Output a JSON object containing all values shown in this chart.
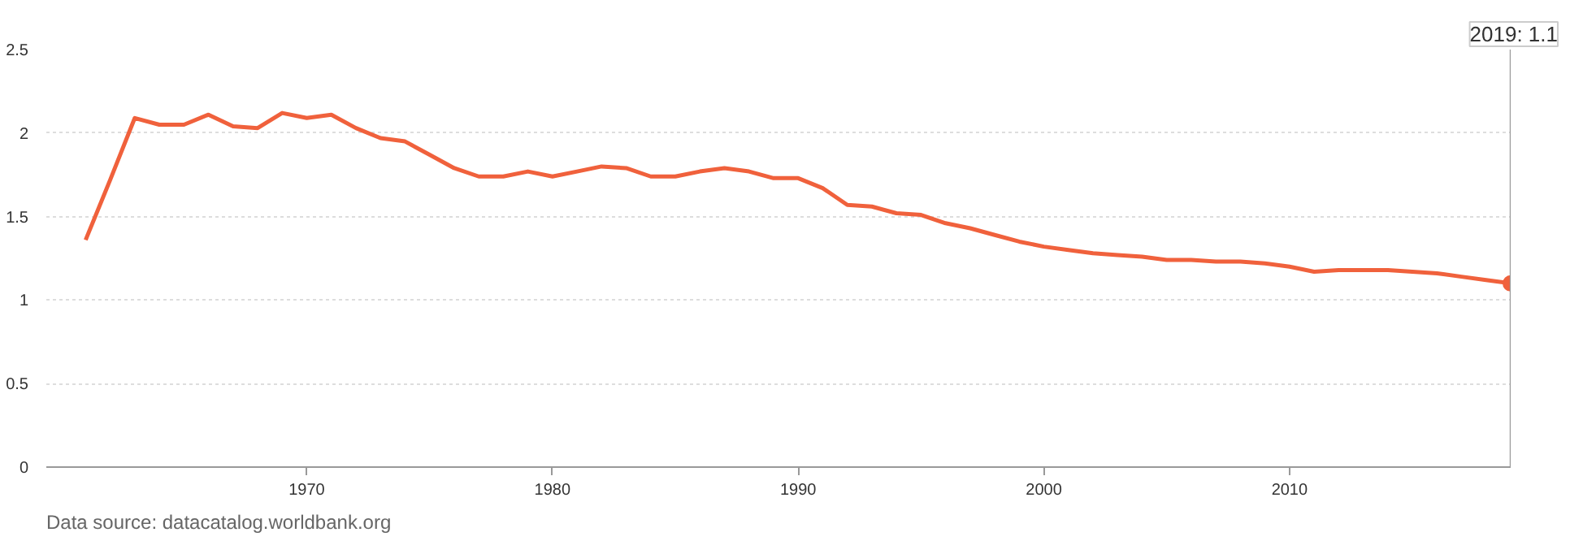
{
  "chart_data": {
    "type": "line",
    "x": [
      1961,
      1962,
      1963,
      1964,
      1965,
      1966,
      1967,
      1968,
      1969,
      1970,
      1971,
      1972,
      1973,
      1974,
      1975,
      1976,
      1977,
      1978,
      1979,
      1980,
      1981,
      1982,
      1983,
      1984,
      1985,
      1986,
      1987,
      1988,
      1989,
      1990,
      1991,
      1992,
      1993,
      1994,
      1995,
      1996,
      1997,
      1998,
      1999,
      2000,
      2001,
      2002,
      2003,
      2004,
      2005,
      2006,
      2007,
      2008,
      2009,
      2010,
      2011,
      2012,
      2013,
      2014,
      2015,
      2016,
      2017,
      2018,
      2019
    ],
    "series": [
      {
        "color": "#f0613c",
        "values": [
          1.36,
          1.72,
          2.09,
          2.05,
          2.05,
          2.11,
          2.04,
          2.03,
          2.12,
          2.09,
          2.11,
          2.03,
          1.97,
          1.95,
          1.87,
          1.79,
          1.74,
          1.74,
          1.77,
          1.74,
          1.77,
          1.8,
          1.79,
          1.74,
          1.74,
          1.77,
          1.79,
          1.77,
          1.73,
          1.73,
          1.67,
          1.57,
          1.56,
          1.52,
          1.51,
          1.46,
          1.43,
          1.39,
          1.35,
          1.32,
          1.3,
          1.28,
          1.27,
          1.26,
          1.24,
          1.24,
          1.23,
          1.23,
          1.22,
          1.2,
          1.17,
          1.18,
          1.18,
          1.18,
          1.17,
          1.16,
          1.14,
          1.12,
          1.1
        ]
      }
    ],
    "xlim": [
      1959.4,
      2019
    ],
    "ylim": [
      0,
      2.5
    ],
    "xticks": [
      1970,
      1980,
      1990,
      2000,
      2010
    ],
    "yticks": [
      0,
      0.5,
      1,
      1.5,
      2,
      2.5
    ],
    "grid": "y",
    "marker": "none",
    "line_style": "solid",
    "ref_lines": [
      {
        "axis": "x",
        "value": 2019,
        "color": "#999999",
        "label": "2019: 1.1"
      }
    ],
    "annotations": [
      "Data source: datacatalog.worldbank.org"
    ]
  }
}
